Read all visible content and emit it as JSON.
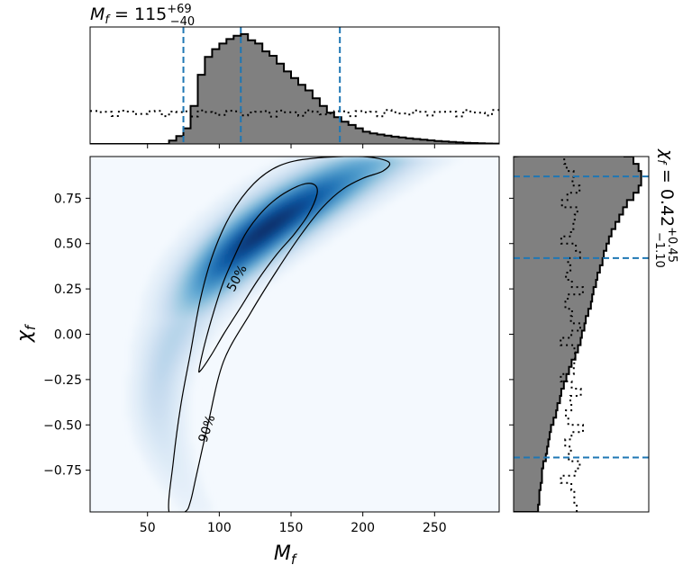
{
  "chart_data": [
    {
      "type": "histogram",
      "panel": "top-marginal",
      "title_symbol": "M",
      "title_subscript": "f",
      "title_value": " = 115",
      "title_sup": "+69",
      "title_sub": "−40",
      "x_domain": [
        10,
        295
      ],
      "bins": {
        "start": 65,
        "width": 5,
        "posterior": [
          0.03,
          0.07,
          0.14,
          0.34,
          0.62,
          0.78,
          0.85,
          0.9,
          0.94,
          0.97,
          0.985,
          0.93,
          0.9,
          0.83,
          0.79,
          0.72,
          0.65,
          0.59,
          0.53,
          0.48,
          0.41,
          0.34,
          0.28,
          0.24,
          0.2,
          0.17,
          0.14,
          0.11,
          0.095,
          0.085,
          0.075,
          0.065,
          0.058,
          0.05,
          0.044,
          0.038,
          0.032,
          0.027,
          0.022,
          0.018,
          0.014,
          0.01,
          0.008,
          0.006,
          0.004,
          0.003,
          0.002
        ]
      },
      "prior_level": 0.28,
      "credible_lines": [
        75,
        115,
        184
      ]
    },
    {
      "type": "heatmap",
      "panel": "joint",
      "xlabel_symbol": "M",
      "xlabel_subscript": "f",
      "ylabel_symbol": "χ",
      "ylabel_subscript": "f",
      "xlim": [
        10,
        295
      ],
      "ylim": [
        -0.98,
        0.98
      ],
      "xticks": [
        50,
        100,
        150,
        200,
        250
      ],
      "yticks": [
        0.75,
        0.5,
        0.25,
        0.0,
        -0.25,
        -0.5,
        -0.75
      ],
      "ytick_labels": [
        "0.75",
        "0.50",
        "0.25",
        "0.00",
        "−0.25",
        "−0.50",
        "−0.75"
      ],
      "contour_labels": [
        "50%",
        "90%"
      ],
      "contour_50": [
        [
          86,
          -0.19
        ],
        [
          90,
          -0.05
        ],
        [
          96,
          0.12
        ],
        [
          103,
          0.29
        ],
        [
          110,
          0.42
        ],
        [
          118,
          0.55
        ],
        [
          127,
          0.65
        ],
        [
          137,
          0.73
        ],
        [
          148,
          0.79
        ],
        [
          160,
          0.83
        ],
        [
          167,
          0.82
        ],
        [
          168,
          0.77
        ],
        [
          162,
          0.66
        ],
        [
          152,
          0.55
        ],
        [
          140,
          0.44
        ],
        [
          127,
          0.3
        ],
        [
          115,
          0.15
        ],
        [
          103,
          0.0
        ],
        [
          94,
          -0.12
        ],
        [
          87,
          -0.2
        ]
      ],
      "contour_90": [
        [
          65,
          -0.98
        ],
        [
          68,
          -0.7
        ],
        [
          73,
          -0.4
        ],
        [
          80,
          -0.1
        ],
        [
          87,
          0.2
        ],
        [
          96,
          0.45
        ],
        [
          108,
          0.66
        ],
        [
          124,
          0.83
        ],
        [
          142,
          0.93
        ],
        [
          165,
          0.97
        ],
        [
          200,
          0.98
        ],
        [
          218,
          0.95
        ],
        [
          214,
          0.9
        ],
        [
          200,
          0.86
        ],
        [
          186,
          0.8
        ],
        [
          172,
          0.7
        ],
        [
          157,
          0.55
        ],
        [
          140,
          0.35
        ],
        [
          122,
          0.12
        ],
        [
          103,
          -0.15
        ],
        [
          92,
          -0.5
        ],
        [
          84,
          -0.78
        ],
        [
          80,
          -0.92
        ],
        [
          76,
          -0.98
        ]
      ]
    },
    {
      "type": "histogram",
      "panel": "right-marginal",
      "orientation": "horizontal",
      "title_symbol": "χ",
      "title_subscript": "f",
      "title_value": " = 0.42",
      "title_sup": "+0.45",
      "title_sub": "−1.10",
      "y_domain": [
        -0.98,
        0.98
      ],
      "bins": {
        "start": -0.98,
        "width": 0.04,
        "posterior": [
          0.19,
          0.2,
          0.2,
          0.21,
          0.22,
          0.22,
          0.23,
          0.25,
          0.26,
          0.27,
          0.28,
          0.29,
          0.31,
          0.33,
          0.34,
          0.36,
          0.37,
          0.39,
          0.41,
          0.43,
          0.45,
          0.48,
          0.5,
          0.52,
          0.53,
          0.55,
          0.56,
          0.58,
          0.6,
          0.61,
          0.62,
          0.64,
          0.65,
          0.67,
          0.69,
          0.7,
          0.72,
          0.74,
          0.76,
          0.79,
          0.82,
          0.85,
          0.88,
          0.93,
          0.97,
          0.99,
          0.99,
          0.97,
          0.93,
          0.86
        ]
      },
      "prior_level": 0.45,
      "credible_lines": [
        0.87,
        0.42,
        -0.68
      ]
    }
  ]
}
